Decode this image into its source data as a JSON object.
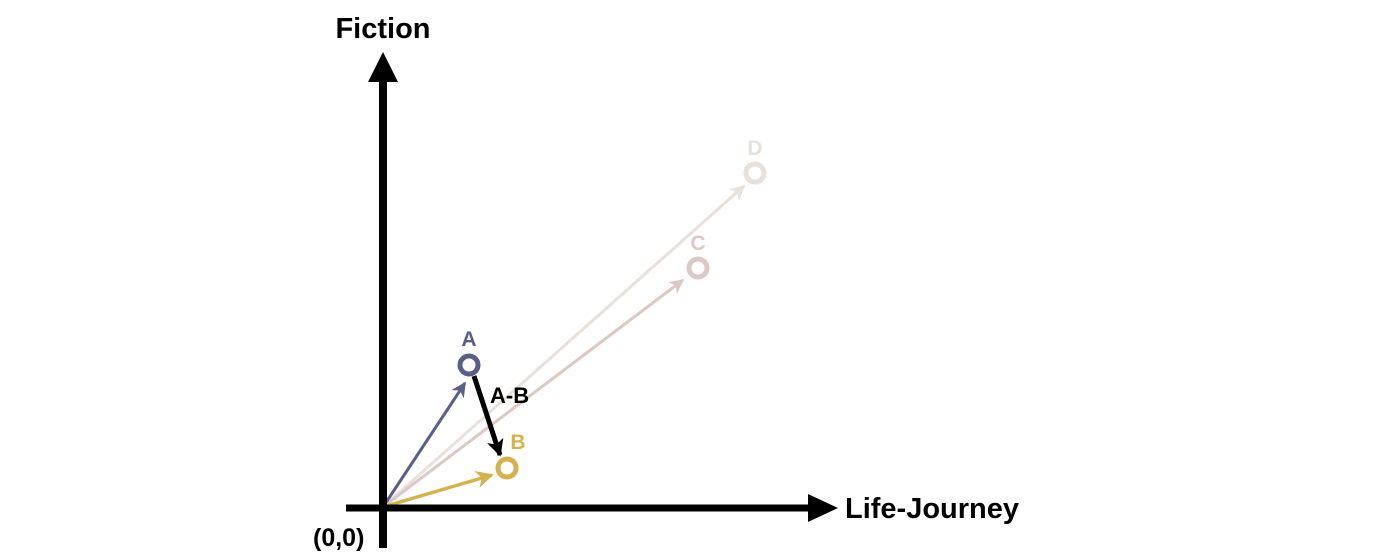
{
  "axes": {
    "y_label": "Fiction",
    "x_label": "Life-Journey",
    "origin_label": "(0,0)"
  },
  "points": {
    "A": {
      "label": "A",
      "color": "#5a5f88"
    },
    "B": {
      "label": "B",
      "color": "#d4b24f"
    },
    "C": {
      "label": "C",
      "color": "#dcc9c7"
    },
    "D": {
      "label": "D",
      "color": "#e6e1de"
    }
  },
  "difference_vector": {
    "label": "A-B",
    "color": "#000000"
  }
}
